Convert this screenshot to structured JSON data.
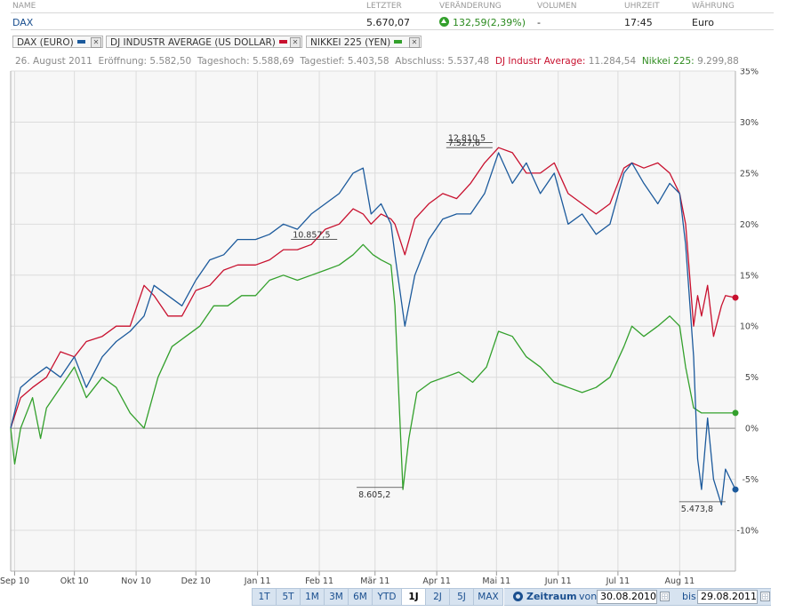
{
  "header": {
    "cols": {
      "name": "NAME",
      "last": "LETZTER",
      "change": "VERÄNDERUNG",
      "volume": "VOLUMEN",
      "time": "UHRZEIT",
      "currency": "WÄHRUNG"
    },
    "row": {
      "name": "DAX",
      "last": "5.670,07",
      "change": "132,59(2,39%)",
      "volume": "-",
      "time": "17:45",
      "currency": "Euro"
    }
  },
  "legend": [
    {
      "label": "DAX (EURO)",
      "color": "#1c5a9c"
    },
    {
      "label": "DJ INDUSTR AVERAGE (US DOLLAR)",
      "color": "#c8102e"
    },
    {
      "label": "NIKKEI 225 (YEN)",
      "color": "#33a02c"
    }
  ],
  "info": {
    "date": "26. August 2011",
    "open_label": "Eröffnung:",
    "open": "5.582,50",
    "high_label": "Tageshoch:",
    "high": "5.588,69",
    "low_label": "Tagestief:",
    "low": "5.403,58",
    "close_label": "Abschluss:",
    "close": "5.537,48",
    "dj_label": "DJ Industr Average:",
    "dj": "11.284,54",
    "nk_label": "Nikkei 225:",
    "nk": "9.299,88"
  },
  "toolbar": {
    "ranges": [
      "1T",
      "5T",
      "1M",
      "3M",
      "6M",
      "YTD",
      "1J",
      "2J",
      "5J",
      "MAX"
    ],
    "active": "1J",
    "zeitraum": "Zeitraum",
    "von": "von",
    "from_date": "30.08.2010",
    "bis": "bis",
    "to_date": "29.08.2011"
  },
  "chart_data": {
    "type": "line",
    "y_unit": "%",
    "ylim": [
      -14,
      35
    ],
    "yticks": [
      -10,
      -5,
      0,
      5,
      10,
      15,
      20,
      25,
      30,
      35
    ],
    "ytick_labels": [
      "-10%",
      "-5%",
      "0%",
      "5%",
      "10%",
      "15%",
      "20%",
      "25%",
      "30%",
      "35%"
    ],
    "xlim": [
      "2010-08-30",
      "2011-08-29"
    ],
    "xticks": [
      {
        "date": "2010-09-01",
        "label": "Sep 10"
      },
      {
        "date": "2010-10-01",
        "label": "Okt 10"
      },
      {
        "date": "2010-11-01",
        "label": "Nov 10"
      },
      {
        "date": "2010-12-01",
        "label": "Dez 10"
      },
      {
        "date": "2011-01-01",
        "label": "Jan 11"
      },
      {
        "date": "2011-02-01",
        "label": "Feb 11"
      },
      {
        "date": "2011-03-01",
        "label": "Mär 11"
      },
      {
        "date": "2011-04-01",
        "label": "Apr 11"
      },
      {
        "date": "2011-05-01",
        "label": "Mai 11"
      },
      {
        "date": "2011-06-01",
        "label": "Jun 11"
      },
      {
        "date": "2011-07-01",
        "label": "Jul 11"
      },
      {
        "date": "2011-08-01",
        "label": "Aug 11"
      }
    ],
    "grid": true,
    "series": [
      {
        "name": "DAX (EURO)",
        "color": "#1c5a9c",
        "points": [
          [
            "2010-08-30",
            0
          ],
          [
            "2010-09-04",
            4
          ],
          [
            "2010-09-10",
            5
          ],
          [
            "2010-09-17",
            6
          ],
          [
            "2010-09-24",
            5
          ],
          [
            "2010-10-01",
            7
          ],
          [
            "2010-10-07",
            4
          ],
          [
            "2010-10-15",
            7
          ],
          [
            "2010-10-22",
            8.5
          ],
          [
            "2010-10-29",
            9.5
          ],
          [
            "2010-11-05",
            11
          ],
          [
            "2010-11-10",
            14
          ],
          [
            "2010-11-17",
            13
          ],
          [
            "2010-11-24",
            12
          ],
          [
            "2010-12-01",
            14.5
          ],
          [
            "2010-12-08",
            16.5
          ],
          [
            "2010-12-15",
            17
          ],
          [
            "2010-12-22",
            18.5
          ],
          [
            "2010-12-31",
            18.5
          ],
          [
            "2011-01-07",
            19
          ],
          [
            "2011-01-14",
            20
          ],
          [
            "2011-01-21",
            19.5
          ],
          [
            "2011-01-28",
            21
          ],
          [
            "2011-02-04",
            22
          ],
          [
            "2011-02-11",
            23
          ],
          [
            "2011-02-18",
            25
          ],
          [
            "2011-02-23",
            25.5
          ],
          [
            "2011-02-27",
            21
          ],
          [
            "2011-03-04",
            22
          ],
          [
            "2011-03-09",
            20
          ],
          [
            "2011-03-11",
            17
          ],
          [
            "2011-03-16",
            10
          ],
          [
            "2011-03-21",
            15
          ],
          [
            "2011-03-28",
            18.5
          ],
          [
            "2011-04-04",
            20.5
          ],
          [
            "2011-04-11",
            21
          ],
          [
            "2011-04-18",
            21
          ],
          [
            "2011-04-25",
            23
          ],
          [
            "2011-05-02",
            27
          ],
          [
            "2011-05-09",
            24
          ],
          [
            "2011-05-16",
            26
          ],
          [
            "2011-05-23",
            23
          ],
          [
            "2011-05-30",
            25
          ],
          [
            "2011-06-06",
            20
          ],
          [
            "2011-06-13",
            21
          ],
          [
            "2011-06-20",
            19
          ],
          [
            "2011-06-27",
            20
          ],
          [
            "2011-07-04",
            25
          ],
          [
            "2011-07-08",
            26
          ],
          [
            "2011-07-14",
            24
          ],
          [
            "2011-07-21",
            22
          ],
          [
            "2011-07-27",
            24
          ],
          [
            "2011-08-01",
            23
          ],
          [
            "2011-08-04",
            18
          ],
          [
            "2011-08-08",
            7
          ],
          [
            "2011-08-10",
            -3
          ],
          [
            "2011-08-12",
            -6
          ],
          [
            "2011-08-15",
            1
          ],
          [
            "2011-08-18",
            -5
          ],
          [
            "2011-08-22",
            -7.5
          ],
          [
            "2011-08-24",
            -4
          ],
          [
            "2011-08-29",
            -6
          ]
        ]
      },
      {
        "name": "DJ INDUSTR AVERAGE (US DOLLAR)",
        "color": "#c8102e",
        "points": [
          [
            "2010-08-30",
            0
          ],
          [
            "2010-09-04",
            3
          ],
          [
            "2010-09-10",
            4
          ],
          [
            "2010-09-17",
            5
          ],
          [
            "2010-09-24",
            7.5
          ],
          [
            "2010-10-01",
            7
          ],
          [
            "2010-10-07",
            8.5
          ],
          [
            "2010-10-15",
            9
          ],
          [
            "2010-10-22",
            10
          ],
          [
            "2010-10-29",
            10
          ],
          [
            "2010-11-05",
            14
          ],
          [
            "2010-11-10",
            13
          ],
          [
            "2010-11-17",
            11
          ],
          [
            "2010-11-24",
            11
          ],
          [
            "2010-12-01",
            13.5
          ],
          [
            "2010-12-08",
            14
          ],
          [
            "2010-12-15",
            15.5
          ],
          [
            "2010-12-22",
            16
          ],
          [
            "2010-12-31",
            16
          ],
          [
            "2011-01-07",
            16.5
          ],
          [
            "2011-01-14",
            17.5
          ],
          [
            "2011-01-21",
            17.5
          ],
          [
            "2011-01-28",
            18
          ],
          [
            "2011-02-04",
            19.5
          ],
          [
            "2011-02-11",
            20
          ],
          [
            "2011-02-18",
            21.5
          ],
          [
            "2011-02-23",
            21
          ],
          [
            "2011-02-27",
            20
          ],
          [
            "2011-03-04",
            21
          ],
          [
            "2011-03-09",
            20.5
          ],
          [
            "2011-03-11",
            20
          ],
          [
            "2011-03-16",
            17
          ],
          [
            "2011-03-21",
            20.5
          ],
          [
            "2011-03-28",
            22
          ],
          [
            "2011-04-04",
            23
          ],
          [
            "2011-04-11",
            22.5
          ],
          [
            "2011-04-18",
            24
          ],
          [
            "2011-04-25",
            26
          ],
          [
            "2011-05-02",
            27.5
          ],
          [
            "2011-05-09",
            27
          ],
          [
            "2011-05-16",
            25
          ],
          [
            "2011-05-23",
            25
          ],
          [
            "2011-05-30",
            26
          ],
          [
            "2011-06-06",
            23
          ],
          [
            "2011-06-13",
            22
          ],
          [
            "2011-06-20",
            21
          ],
          [
            "2011-06-27",
            22
          ],
          [
            "2011-07-04",
            25.5
          ],
          [
            "2011-07-08",
            26
          ],
          [
            "2011-07-14",
            25.5
          ],
          [
            "2011-07-21",
            26
          ],
          [
            "2011-07-27",
            25
          ],
          [
            "2011-08-01",
            23
          ],
          [
            "2011-08-04",
            20
          ],
          [
            "2011-08-08",
            10
          ],
          [
            "2011-08-10",
            13
          ],
          [
            "2011-08-12",
            11
          ],
          [
            "2011-08-15",
            14
          ],
          [
            "2011-08-18",
            9
          ],
          [
            "2011-08-22",
            12
          ],
          [
            "2011-08-24",
            13
          ],
          [
            "2011-08-29",
            12.8
          ]
        ]
      },
      {
        "name": "NIKKEI 225 (YEN)",
        "color": "#33a02c",
        "points": [
          [
            "2010-08-30",
            0
          ],
          [
            "2010-09-01",
            -3.5
          ],
          [
            "2010-09-04",
            0
          ],
          [
            "2010-09-10",
            3
          ],
          [
            "2010-09-14",
            -1
          ],
          [
            "2010-09-17",
            2
          ],
          [
            "2010-09-24",
            4
          ],
          [
            "2010-10-01",
            6
          ],
          [
            "2010-10-07",
            3
          ],
          [
            "2010-10-15",
            5
          ],
          [
            "2010-10-22",
            4
          ],
          [
            "2010-10-29",
            1.5
          ],
          [
            "2010-11-05",
            0
          ],
          [
            "2010-11-12",
            5
          ],
          [
            "2010-11-19",
            8
          ],
          [
            "2010-11-26",
            9
          ],
          [
            "2010-12-03",
            10
          ],
          [
            "2010-12-10",
            12
          ],
          [
            "2010-12-17",
            12
          ],
          [
            "2010-12-24",
            13
          ],
          [
            "2010-12-31",
            13
          ],
          [
            "2011-01-07",
            14.5
          ],
          [
            "2011-01-14",
            15
          ],
          [
            "2011-01-21",
            14.5
          ],
          [
            "2011-01-28",
            15
          ],
          [
            "2011-02-04",
            15.5
          ],
          [
            "2011-02-11",
            16
          ],
          [
            "2011-02-18",
            17
          ],
          [
            "2011-02-23",
            18
          ],
          [
            "2011-02-28",
            17
          ],
          [
            "2011-03-04",
            16.5
          ],
          [
            "2011-03-09",
            16
          ],
          [
            "2011-03-11",
            12
          ],
          [
            "2011-03-15",
            -6
          ],
          [
            "2011-03-18",
            -1
          ],
          [
            "2011-03-22",
            3.5
          ],
          [
            "2011-03-29",
            4.5
          ],
          [
            "2011-04-05",
            5
          ],
          [
            "2011-04-12",
            5.5
          ],
          [
            "2011-04-19",
            4.5
          ],
          [
            "2011-04-26",
            6
          ],
          [
            "2011-05-02",
            9.5
          ],
          [
            "2011-05-09",
            9
          ],
          [
            "2011-05-16",
            7
          ],
          [
            "2011-05-23",
            6
          ],
          [
            "2011-05-30",
            4.5
          ],
          [
            "2011-06-06",
            4
          ],
          [
            "2011-06-13",
            3.5
          ],
          [
            "2011-06-20",
            4
          ],
          [
            "2011-06-27",
            5
          ],
          [
            "2011-07-04",
            8
          ],
          [
            "2011-07-08",
            10
          ],
          [
            "2011-07-14",
            9
          ],
          [
            "2011-07-21",
            10
          ],
          [
            "2011-07-27",
            11
          ],
          [
            "2011-08-01",
            10
          ],
          [
            "2011-08-04",
            6
          ],
          [
            "2011-08-08",
            2
          ],
          [
            "2011-08-12",
            1.5
          ],
          [
            "2011-08-29",
            1.5
          ]
        ]
      }
    ],
    "annotations": [
      {
        "date": "2011-02-10",
        "value": 18.5,
        "label": "10.857,5"
      },
      {
        "date": "2011-04-29",
        "value": 28.0,
        "label": "12.810,5"
      },
      {
        "date": "2011-04-29",
        "value": 27.5,
        "label": "7.527,6"
      },
      {
        "date": "2011-03-15",
        "value": -5.8,
        "label": "8.605,2"
      },
      {
        "date": "2011-08-24",
        "value": -7.2,
        "label": "5.473,8"
      }
    ]
  }
}
